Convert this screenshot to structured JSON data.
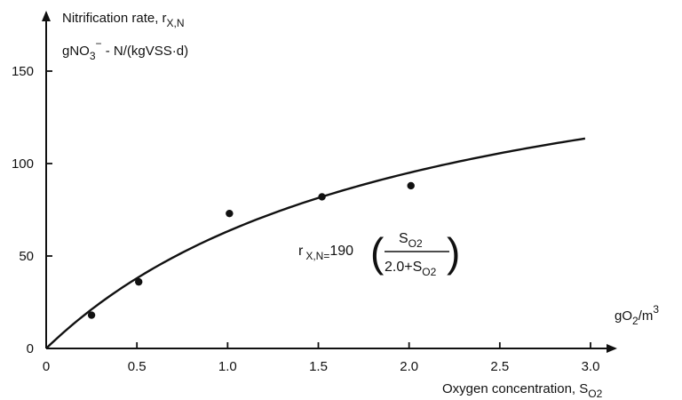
{
  "chart_data": {
    "type": "scatter",
    "ylabel_line1": "Nitrification rate, r",
    "ylabel_line1_sub": "X,N",
    "ylabel_line2_a": "gNO",
    "ylabel_line2_sub": "3",
    "ylabel_line2_sup": "−",
    "ylabel_line2_b": " - N/(kgVSS·d)",
    "xunit_a": "gO",
    "xunit_sub": "2",
    "xunit_b": "/m",
    "xunit_sup": "3",
    "xlabel_a": "Oxygen concentration, S",
    "xlabel_sub": "O2",
    "xlim": [
      0,
      3.0
    ],
    "ylim": [
      0,
      150
    ],
    "x_ticks": [
      0,
      0.5,
      1.0,
      1.5,
      2.0,
      2.5,
      3.0
    ],
    "x_tick_labels": [
      "0",
      "0.5",
      "1.0",
      "1.5",
      "2.0",
      "2.5",
      "3.0"
    ],
    "y_ticks": [
      0,
      50,
      100,
      150
    ],
    "y_tick_labels": [
      "0",
      "50",
      "100",
      "150"
    ],
    "points": [
      {
        "x": 0.25,
        "y": 18
      },
      {
        "x": 0.51,
        "y": 36
      },
      {
        "x": 1.01,
        "y": 73
      },
      {
        "x": 1.52,
        "y": 82
      },
      {
        "x": 2.01,
        "y": 88
      }
    ],
    "fit": {
      "a": 190,
      "K": 2.0,
      "x_max": 2.97
    },
    "formula": {
      "lhs_r": "r",
      "lhs_sub": "X,N=",
      "coef": "190",
      "num_a": "S",
      "num_sub": "O2",
      "den_a": "2.0+S",
      "den_sub": "O2"
    }
  }
}
